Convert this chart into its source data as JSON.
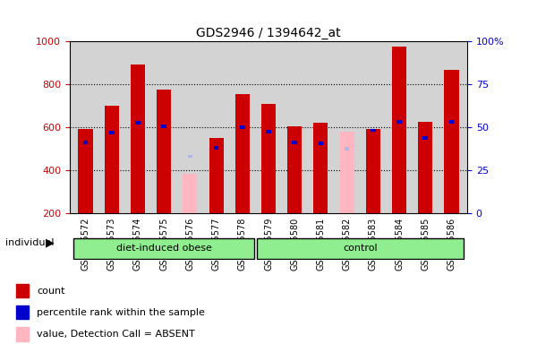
{
  "title": "GDS2946 / 1394642_at",
  "samples": [
    "GSM215572",
    "GSM215573",
    "GSM215574",
    "GSM215575",
    "GSM215576",
    "GSM215577",
    "GSM215578",
    "GSM215579",
    "GSM215580",
    "GSM215581",
    "GSM215582",
    "GSM215583",
    "GSM215584",
    "GSM215585",
    "GSM215586"
  ],
  "groups": {
    "diet-induced obese": [
      "GSM215572",
      "GSM215573",
      "GSM215574",
      "GSM215575",
      "GSM215576",
      "GSM215577",
      "GSM215578"
    ],
    "control": [
      "GSM215579",
      "GSM215580",
      "GSM215581",
      "GSM215582",
      "GSM215583",
      "GSM215584",
      "GSM215585",
      "GSM215586"
    ]
  },
  "count_values": [
    590,
    700,
    890,
    775,
    null,
    550,
    755,
    710,
    605,
    620,
    null,
    590,
    975,
    625,
    865
  ],
  "rank_values": [
    530,
    575,
    620,
    605,
    null,
    505,
    600,
    580,
    530,
    525,
    null,
    585,
    625,
    550,
    625
  ],
  "absent_value_values": [
    null,
    null,
    null,
    null,
    385,
    null,
    null,
    null,
    null,
    null,
    580,
    null,
    null,
    null,
    null
  ],
  "absent_rank_values": [
    null,
    null,
    null,
    null,
    465,
    null,
    null,
    null,
    null,
    null,
    500,
    null,
    null,
    null,
    null
  ],
  "ylim_left": [
    200,
    1000
  ],
  "ylim_right": [
    0,
    100
  ],
  "y_ticks_left": [
    200,
    400,
    600,
    800,
    1000
  ],
  "y_ticks_right": [
    0,
    25,
    50,
    75,
    100
  ],
  "bar_color": "#cc0000",
  "rank_color": "#0000cc",
  "absent_value_color": "#ffb6c1",
  "absent_rank_color": "#b0b8e8",
  "grid_color": "#000000",
  "bg_color": "#d3d3d3",
  "group1_color": "#90ee90",
  "group2_color": "#90ee90",
  "left_label_color": "#cc0000",
  "right_label_color": "#0000cc",
  "legend_entries": [
    "count",
    "percentile rank within the sample",
    "value, Detection Call = ABSENT",
    "rank, Detection Call = ABSENT"
  ],
  "legend_colors": [
    "#cc0000",
    "#0000cc",
    "#ffb6c1",
    "#b0b8e8"
  ]
}
